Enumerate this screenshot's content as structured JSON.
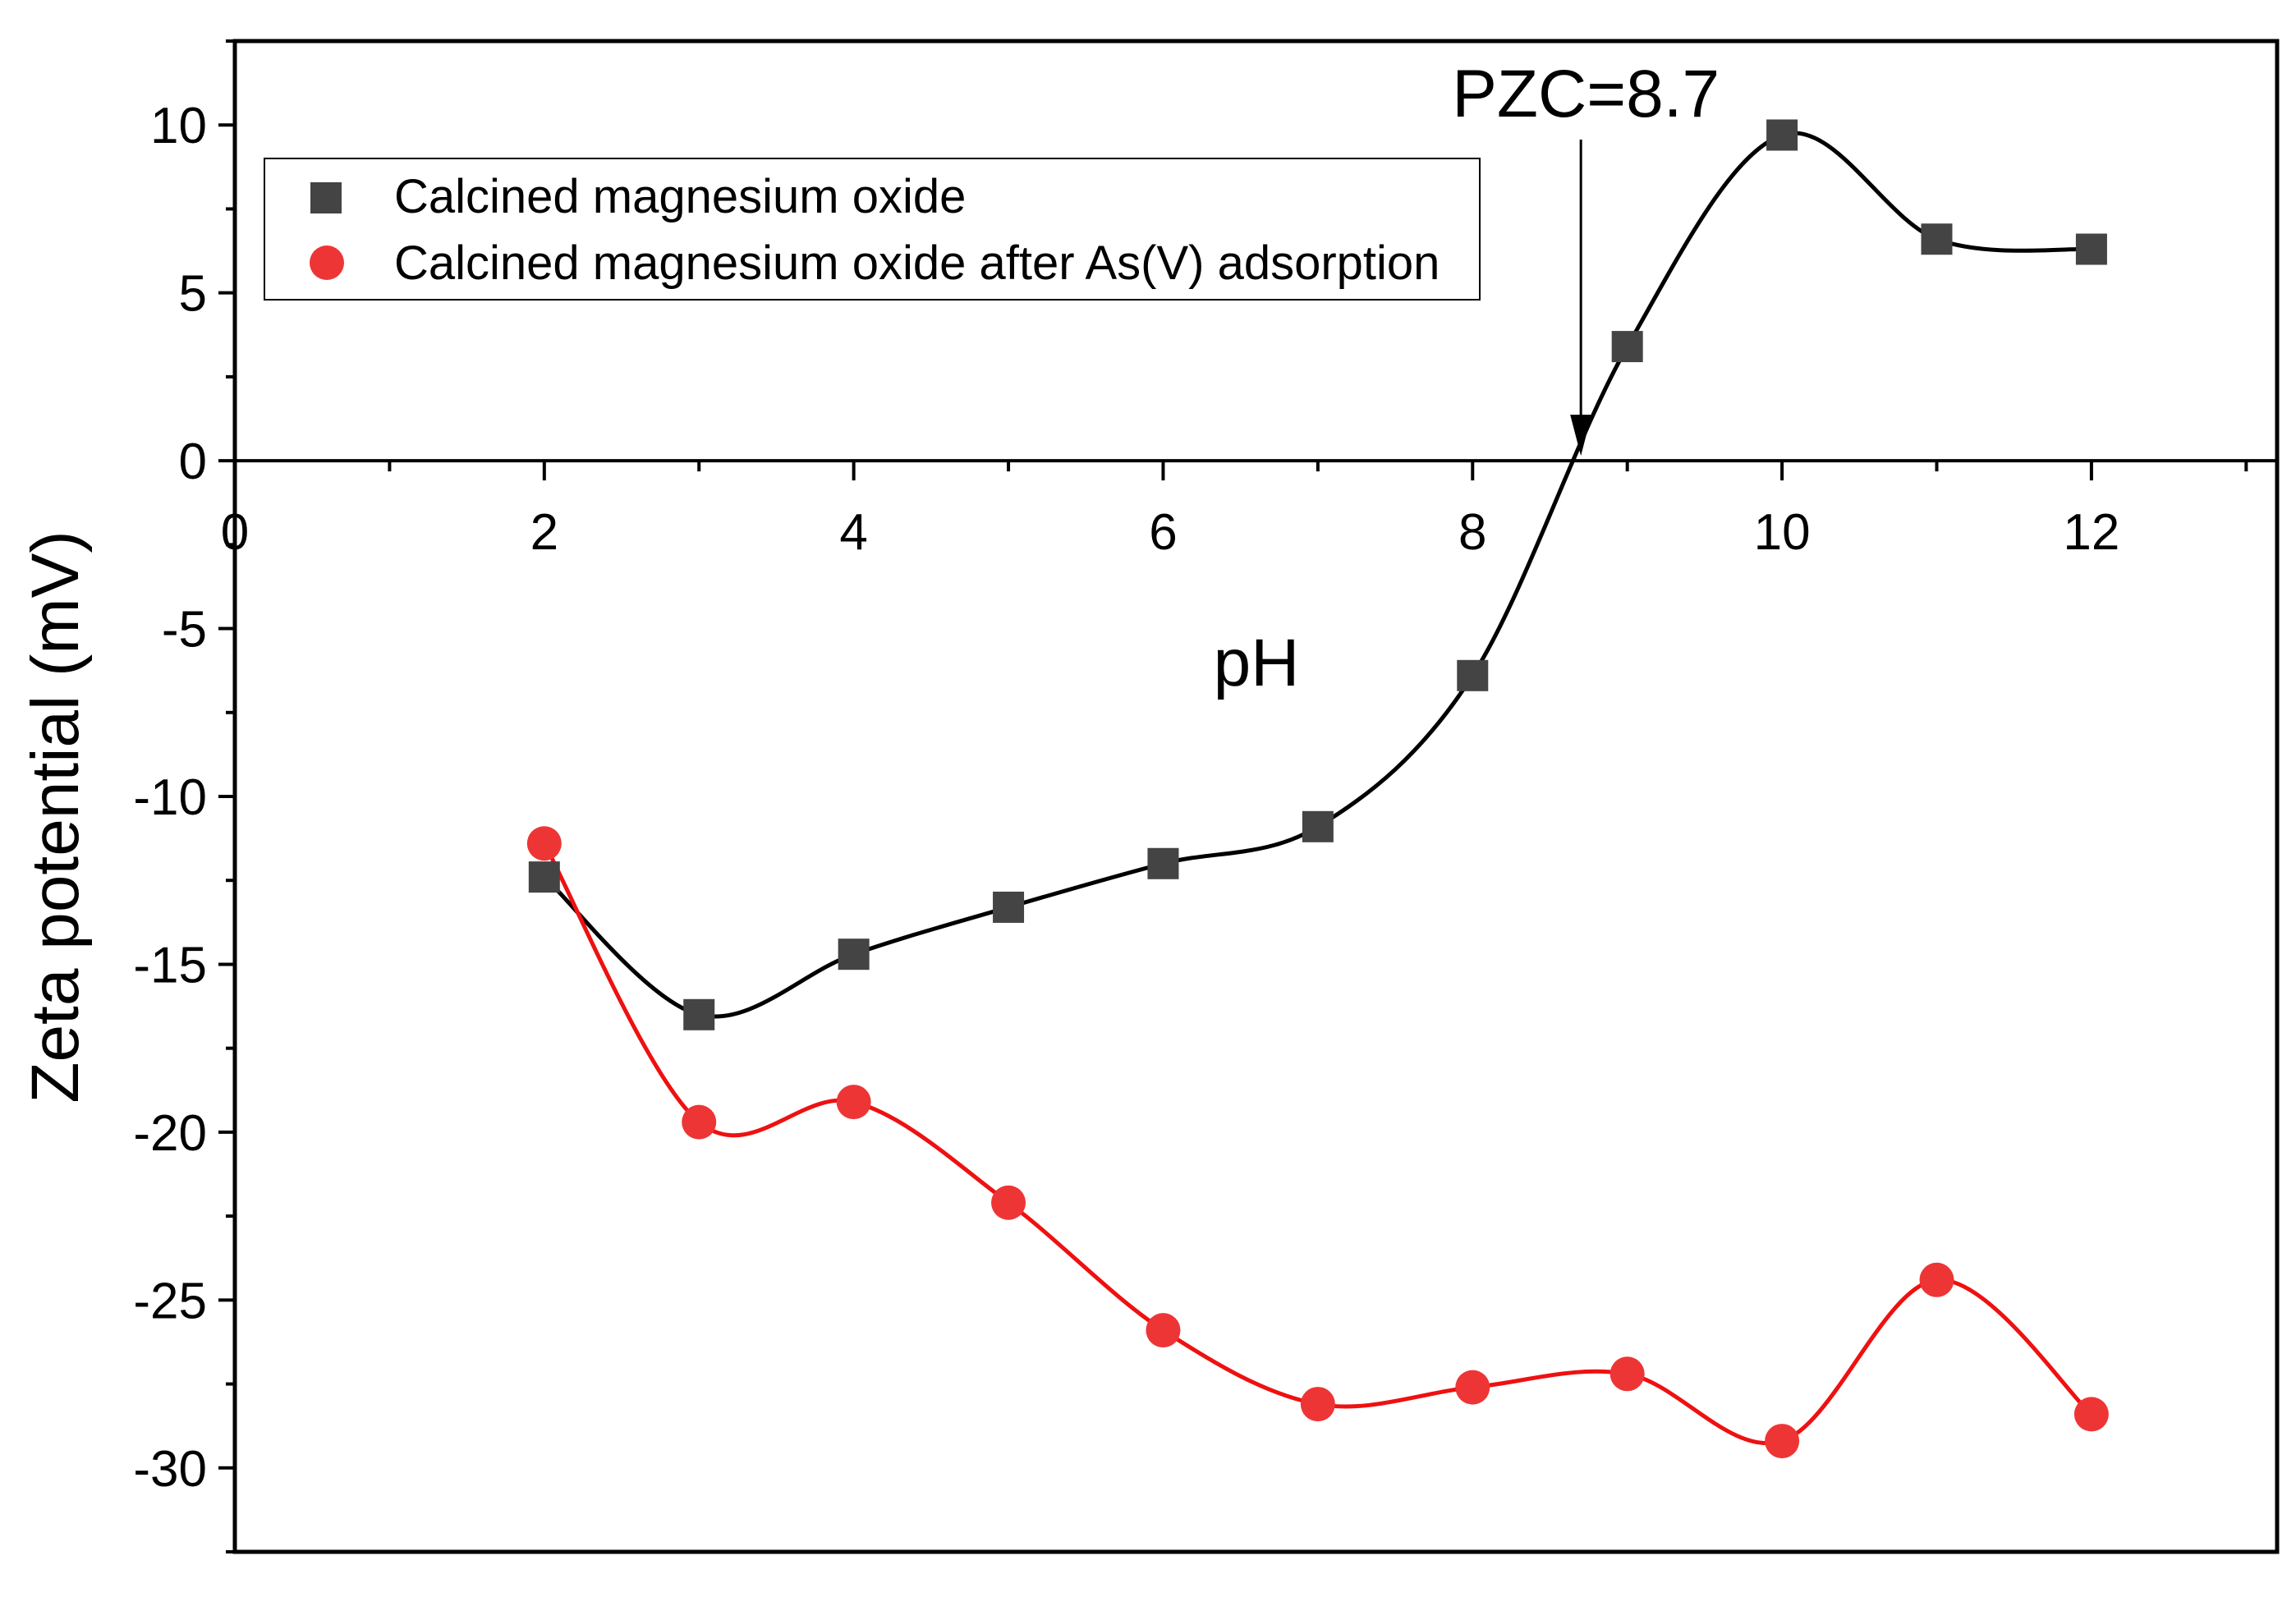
{
  "chart_data": {
    "type": "line",
    "title": "",
    "xlabel": "pH",
    "ylabel": "Zeta potential (mV)",
    "xlim": [
      0,
      13.2
    ],
    "ylim": [
      -32.5,
      12.5
    ],
    "x_ticks": [
      0,
      2,
      4,
      6,
      8,
      10,
      12
    ],
    "y_ticks": [
      10,
      5,
      0,
      -5,
      -10,
      -15,
      -20,
      -25,
      -30
    ],
    "x_tick_labels": [
      "0",
      "2",
      "4",
      "6",
      "8",
      "10",
      "12"
    ],
    "y_tick_labels": [
      "10",
      "5",
      "0",
      "-5",
      "-10",
      "-15",
      "-20",
      "-25",
      "-30"
    ],
    "legend_position": "top-left",
    "series": [
      {
        "name": "Calcined magnesium oxide",
        "marker": "square",
        "color": "#444444",
        "line_color": "#000000",
        "x": [
          2,
          3,
          4,
          5,
          6,
          7,
          8,
          9,
          10,
          11,
          12
        ],
        "values": [
          -12.4,
          -16.5,
          -14.7,
          -13.3,
          -12.0,
          -10.9,
          -6.4,
          3.4,
          9.7,
          6.6,
          6.3
        ]
      },
      {
        "name": "Calcined magnesium oxide after As(V) adsorption",
        "marker": "circle",
        "color": "#ee3535",
        "line_color": "#ee1111",
        "x": [
          2,
          3,
          4,
          5,
          6,
          7,
          8,
          9,
          10,
          11,
          12
        ],
        "values": [
          -11.4,
          -19.7,
          -19.1,
          -22.1,
          -25.9,
          -28.1,
          -27.6,
          -27.2,
          -29.2,
          -24.4,
          -28.4
        ]
      }
    ],
    "annotation": {
      "text": "PZC=8.7",
      "x": 8.7,
      "y": 0
    }
  }
}
